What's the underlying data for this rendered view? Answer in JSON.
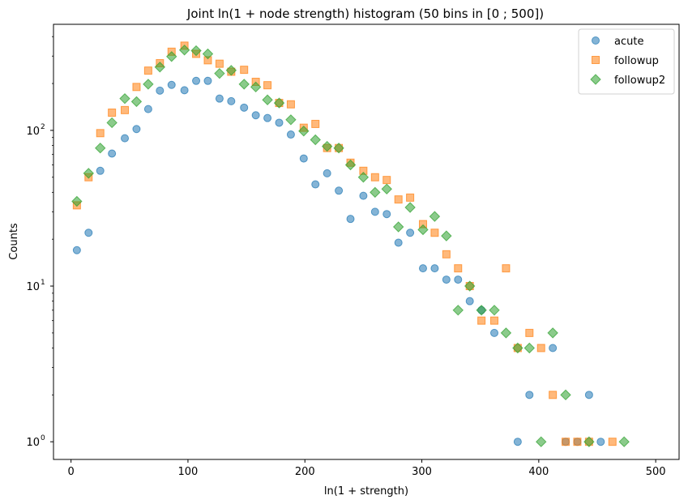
{
  "chart_data": {
    "type": "scatter",
    "title": "Joint ln(1 + node strength) histogram (50 bins in [0 ; 500])",
    "xlabel": "ln(1 + strength)",
    "ylabel": "Counts",
    "xlim": [
      -15,
      520
    ],
    "ylim": [
      0.77,
      480
    ],
    "yscale": "log",
    "x_ticks": [
      0,
      100,
      200,
      300,
      400,
      500
    ],
    "y_ticks": [
      1,
      10,
      100
    ],
    "y_tick_labels": [
      "10",
      "10",
      "10"
    ],
    "y_tick_exponents": [
      "0",
      "1",
      "2"
    ],
    "legend_position": "top-right",
    "grid": false,
    "series": [
      {
        "name": "acute",
        "marker": "circle",
        "color": "#1f77b4",
        "points": [
          [
            5,
            17
          ],
          [
            15,
            22
          ],
          [
            25,
            55
          ],
          [
            35,
            71
          ],
          [
            46,
            89
          ],
          [
            56,
            102
          ],
          [
            66,
            137
          ],
          [
            76,
            180
          ],
          [
            86,
            196
          ],
          [
            97,
            181
          ],
          [
            107,
            208
          ],
          [
            117,
            208
          ],
          [
            127,
            160
          ],
          [
            137,
            154
          ],
          [
            148,
            140
          ],
          [
            158,
            125
          ],
          [
            168,
            120
          ],
          [
            178,
            112
          ],
          [
            188,
            94
          ],
          [
            199,
            66
          ],
          [
            209,
            45
          ],
          [
            219,
            53
          ],
          [
            229,
            41
          ],
          [
            239,
            27
          ],
          [
            250,
            38
          ],
          [
            260,
            30
          ],
          [
            270,
            29
          ],
          [
            280,
            19
          ],
          [
            290,
            22
          ],
          [
            301,
            13
          ],
          [
            311,
            13
          ],
          [
            321,
            11
          ],
          [
            331,
            11
          ],
          [
            341,
            8
          ],
          [
            351,
            7
          ],
          [
            362,
            5
          ],
          [
            382,
            1
          ],
          [
            392,
            2
          ],
          [
            412,
            4
          ],
          [
            423,
            1
          ],
          [
            433,
            1
          ],
          [
            443,
            2
          ],
          [
            453,
            1
          ]
        ]
      },
      {
        "name": "followup",
        "marker": "square",
        "color": "#ff7f0e",
        "points": [
          [
            5,
            33
          ],
          [
            15,
            50
          ],
          [
            25,
            96
          ],
          [
            35,
            130
          ],
          [
            46,
            135
          ],
          [
            56,
            190
          ],
          [
            66,
            242
          ],
          [
            76,
            270
          ],
          [
            86,
            320
          ],
          [
            97,
            350
          ],
          [
            107,
            310
          ],
          [
            117,
            282
          ],
          [
            127,
            268
          ],
          [
            137,
            238
          ],
          [
            148,
            245
          ],
          [
            158,
            205
          ],
          [
            168,
            195
          ],
          [
            178,
            150
          ],
          [
            188,
            147
          ],
          [
            199,
            104
          ],
          [
            209,
            110
          ],
          [
            219,
            77
          ],
          [
            229,
            77
          ],
          [
            239,
            62
          ],
          [
            250,
            55
          ],
          [
            260,
            50
          ],
          [
            270,
            48
          ],
          [
            280,
            36
          ],
          [
            290,
            37
          ],
          [
            301,
            25
          ],
          [
            311,
            22
          ],
          [
            321,
            16
          ],
          [
            331,
            13
          ],
          [
            341,
            10
          ],
          [
            351,
            6
          ],
          [
            362,
            6
          ],
          [
            372,
            13
          ],
          [
            382,
            4
          ],
          [
            392,
            5
          ],
          [
            402,
            4
          ],
          [
            412,
            2
          ],
          [
            423,
            1
          ],
          [
            433,
            1
          ],
          [
            443,
            1
          ],
          [
            463,
            1
          ]
        ]
      },
      {
        "name": "followup2",
        "marker": "diamond",
        "color": "#2ca02c",
        "points": [
          [
            5,
            35
          ],
          [
            15,
            53
          ],
          [
            25,
            77
          ],
          [
            35,
            112
          ],
          [
            46,
            160
          ],
          [
            56,
            153
          ],
          [
            66,
            198
          ],
          [
            76,
            255
          ],
          [
            86,
            298
          ],
          [
            97,
            328
          ],
          [
            107,
            325
          ],
          [
            117,
            310
          ],
          [
            127,
            232
          ],
          [
            137,
            243
          ],
          [
            148,
            198
          ],
          [
            158,
            190
          ],
          [
            168,
            157
          ],
          [
            178,
            150
          ],
          [
            188,
            117
          ],
          [
            199,
            99
          ],
          [
            209,
            87
          ],
          [
            219,
            79
          ],
          [
            229,
            77
          ],
          [
            239,
            60
          ],
          [
            250,
            50
          ],
          [
            260,
            40
          ],
          [
            270,
            42
          ],
          [
            280,
            24
          ],
          [
            290,
            32
          ],
          [
            301,
            23
          ],
          [
            311,
            28
          ],
          [
            321,
            21
          ],
          [
            331,
            7
          ],
          [
            341,
            10
          ],
          [
            351,
            7
          ],
          [
            362,
            7
          ],
          [
            372,
            5
          ],
          [
            382,
            4
          ],
          [
            392,
            4
          ],
          [
            402,
            1
          ],
          [
            412,
            5
          ],
          [
            423,
            2
          ],
          [
            443,
            1
          ],
          [
            473,
            1
          ]
        ]
      }
    ]
  }
}
